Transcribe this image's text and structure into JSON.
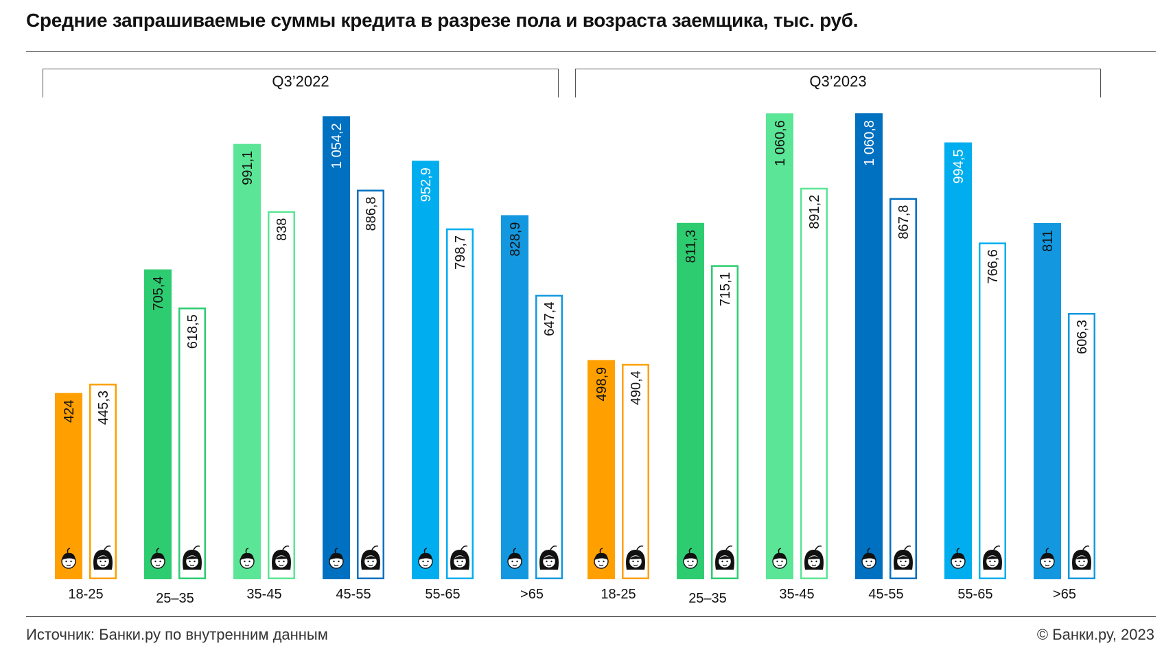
{
  "title": "Средние запрашиваемые суммы кредита в разрезе пола и возраста заемщика, тыс. руб.",
  "footer": {
    "source": "Источник: Банки.ру по внутренним данным",
    "copyright": "© Банки.ру, 2023"
  },
  "icons": {
    "male": "male-face-icon",
    "female": "female-face-icon"
  },
  "chart_data": {
    "type": "bar",
    "title": "Средние запрашиваемые суммы кредита в разрезе пола и возраста заемщика, тыс. руб.",
    "categories": [
      "18-25",
      "25–35",
      "35-45",
      "45-55",
      "55-65",
      ">65"
    ],
    "groups": [
      {
        "label": "Q3’2022",
        "men": [
          424,
          705.4,
          991.1,
          1054.2,
          952.9,
          828.9
        ],
        "women": [
          445.3,
          618.5,
          838,
          886.8,
          798.7,
          647.4
        ],
        "men_labels": [
          "424",
          "705,4",
          "991,1",
          "1 054,2",
          "952,9",
          "828,9"
        ],
        "women_labels": [
          "445,3",
          "618,5",
          "838",
          "886,8",
          "798,7",
          "647,4"
        ]
      },
      {
        "label": "Q3’2023",
        "men": [
          498.9,
          811.3,
          1060.6,
          1060.8,
          994.5,
          811
        ],
        "women": [
          490.4,
          715.1,
          891.2,
          867.8,
          766.6,
          606.3
        ],
        "men_labels": [
          "498,9",
          "811,3",
          "1 060,6",
          "1 060,8",
          "994,5",
          "811"
        ],
        "women_labels": [
          "490,4",
          "715,1",
          "891,2",
          "867,8",
          "766,6",
          "606,3"
        ]
      }
    ],
    "category_colors": [
      "#FF9F00",
      "#2ECC71",
      "#5BE596",
      "#0070C0",
      "#00AEEF",
      "#1398E0"
    ],
    "light_label_categories": [
      3,
      4
    ],
    "grid": false,
    "ylim": [
      0,
      1100
    ]
  }
}
